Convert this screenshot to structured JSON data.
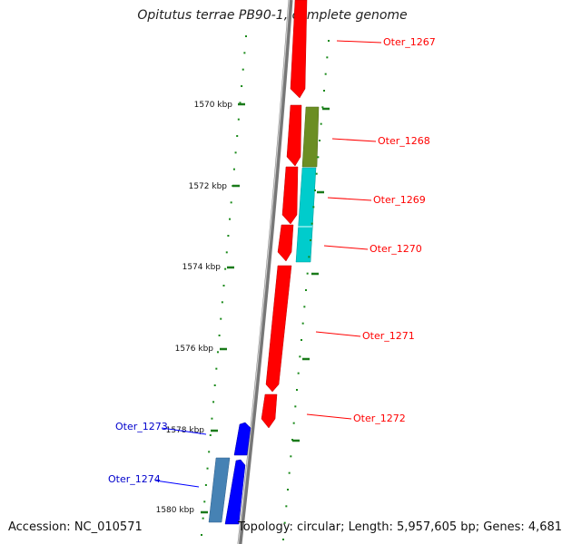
{
  "title": "Opitutus terrae PB90-1, complete genome",
  "accession": "Accession: NC_010571",
  "summary": "Topology: circular; Length: 5,957,605 bp; Genes: 4,681",
  "colors": {
    "backbone": "#888888",
    "ticks": "#1a8a1a",
    "forward_gene": "#ff0000",
    "reverse_gene": "#0000ff",
    "olive_feature": "#6b8e23",
    "cyan_feature": "#00cccc",
    "steelblue_feature": "#4682b4"
  },
  "scale_labels": [
    "1570 kbp",
    "1572 kbp",
    "1574 kbp",
    "1576 kbp",
    "1578 kbp",
    "1580 kbp"
  ],
  "genes_forward": [
    {
      "label": "Oter_1267"
    },
    {
      "label": "Oter_1268"
    },
    {
      "label": "Oter_1269"
    },
    {
      "label": "Oter_1270"
    },
    {
      "label": "Oter_1271"
    },
    {
      "label": "Oter_1272"
    }
  ],
  "genes_reverse": [
    {
      "label": "Oter_1273"
    },
    {
      "label": "Oter_1274"
    }
  ]
}
